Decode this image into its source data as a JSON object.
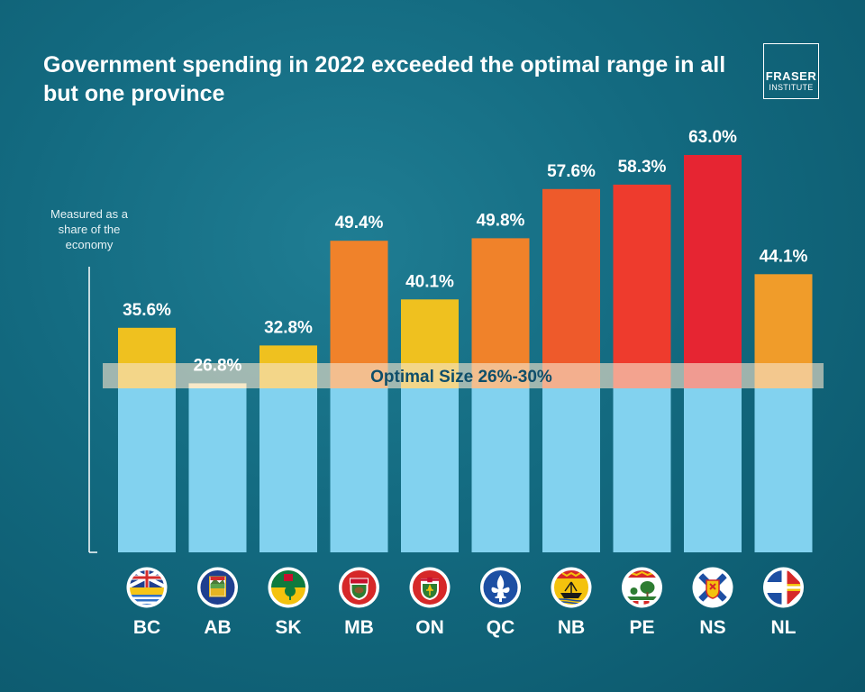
{
  "header": {
    "title": "Government spending in 2022 exceeded the optimal range in all but one province"
  },
  "logo": {
    "line1": "FRASER",
    "line2": "INSTITUTE"
  },
  "chart_data": {
    "type": "bar",
    "title": "Government spending in 2022 exceeded the optimal range in all but one province",
    "ylabel": "Measured as a share of the economy",
    "xlabel": "",
    "categories": [
      "BC",
      "AB",
      "SK",
      "MB",
      "ON",
      "QC",
      "NB",
      "PE",
      "NS",
      "NL"
    ],
    "values": [
      35.6,
      26.8,
      32.8,
      49.4,
      40.1,
      49.8,
      57.6,
      58.3,
      63.0,
      44.1
    ],
    "value_labels": [
      "35.6%",
      "26.8%",
      "32.8%",
      "49.4%",
      "40.1%",
      "49.8%",
      "57.6%",
      "58.3%",
      "63.0%",
      "44.1%"
    ],
    "bar_colors": [
      "#efc11f",
      "#fbf2c2",
      "#efc11f",
      "#f0822a",
      "#efc11f",
      "#f0822a",
      "#ee5a2b",
      "#ee3b2d",
      "#e62532",
      "#f09c2a"
    ],
    "base_color": "#82d2ef",
    "optimal_range": {
      "label": "Optimal Size 26%-30%",
      "min": 26,
      "max": 30,
      "color": "#f5e3cc"
    },
    "ylim": [
      0,
      63
    ],
    "grid": false,
    "legend": "none",
    "icons": [
      "bc-flag-icon",
      "ab-flag-icon",
      "sk-flag-icon",
      "mb-flag-icon",
      "on-flag-icon",
      "qc-flag-icon",
      "nb-flag-icon",
      "pe-flag-icon",
      "ns-flag-icon",
      "nl-flag-icon"
    ]
  }
}
